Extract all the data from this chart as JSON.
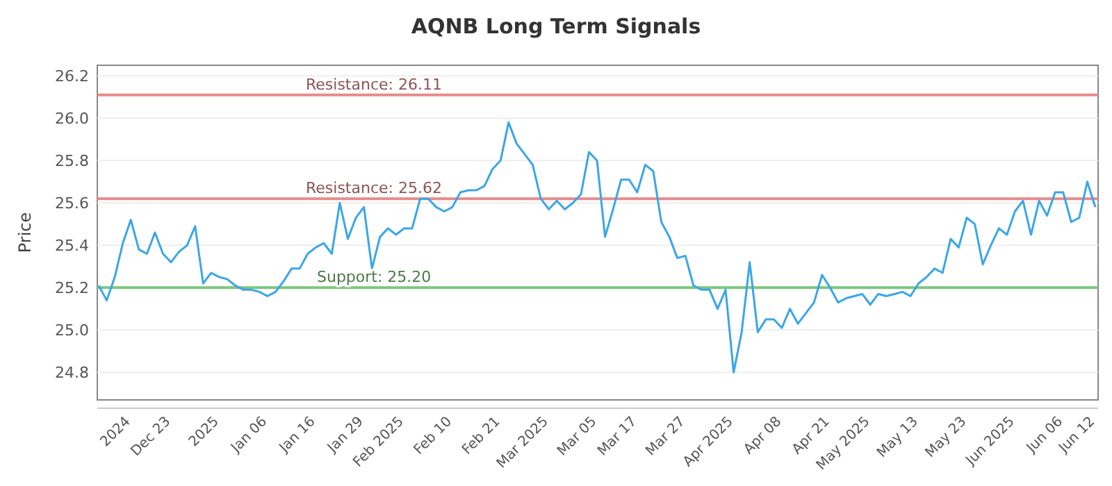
{
  "chart_data": {
    "type": "line",
    "title": "AQNB Long Term Signals",
    "ylabel": "Price",
    "categories": [
      null,
      null,
      null,
      null,
      "2024",
      null,
      null,
      null,
      null,
      "Dec 23",
      null,
      null,
      null,
      null,
      null,
      "2025",
      null,
      null,
      null,
      null,
      null,
      "Jan 06",
      null,
      null,
      null,
      null,
      null,
      "Jan 16",
      null,
      null,
      null,
      null,
      null,
      "Jan 29",
      null,
      null,
      null,
      null,
      "Feb 2025",
      null,
      null,
      null,
      null,
      null,
      "Feb 10",
      null,
      null,
      null,
      null,
      null,
      "Feb 21",
      null,
      null,
      null,
      null,
      null,
      "Mar 2025",
      null,
      null,
      null,
      null,
      null,
      "Mar 05",
      null,
      null,
      null,
      null,
      "Mar 17",
      null,
      null,
      null,
      null,
      null,
      "Mar 27",
      null,
      null,
      null,
      null,
      null,
      "Apr 2025",
      null,
      null,
      null,
      null,
      null,
      "Apr 08",
      null,
      null,
      null,
      null,
      null,
      "Apr 21",
      null,
      null,
      null,
      null,
      "May 2025",
      null,
      null,
      null,
      null,
      null,
      "May 13",
      null,
      null,
      null,
      null,
      null,
      "May 23",
      null,
      null,
      null,
      null,
      null,
      "Jun 2025",
      null,
      null,
      null,
      null,
      null,
      "Jun 06",
      null,
      null,
      null,
      "Jun 12"
    ],
    "series": [
      {
        "color": "#3aa6e8",
        "values": [
          25.21,
          25.14,
          25.25,
          25.41,
          25.52,
          25.38,
          25.36,
          25.46,
          25.36,
          25.32,
          25.37,
          25.4,
          25.49,
          25.22,
          25.27,
          25.25,
          25.24,
          25.21,
          25.19,
          25.19,
          25.18,
          25.16,
          25.18,
          25.23,
          25.29,
          25.29,
          25.36,
          25.39,
          25.41,
          25.36,
          25.6,
          25.43,
          25.53,
          25.58,
          25.29,
          25.44,
          25.48,
          25.45,
          25.48,
          25.48,
          25.62,
          25.62,
          25.58,
          25.56,
          25.58,
          25.65,
          25.66,
          25.66,
          25.68,
          25.76,
          25.8,
          25.98,
          25.88,
          25.83,
          25.78,
          25.62,
          25.57,
          25.61,
          25.57,
          25.6,
          25.64,
          25.84,
          25.8,
          25.44,
          25.57,
          25.71,
          25.71,
          25.65,
          25.78,
          25.75,
          25.51,
          25.44,
          25.34,
          25.35,
          25.21,
          25.19,
          25.19,
          25.1,
          25.19,
          24.8,
          24.99,
          25.32,
          24.99,
          25.05,
          25.05,
          25.01,
          25.1,
          25.03,
          25.08,
          25.13,
          25.26,
          25.2,
          25.13,
          25.15,
          25.16,
          25.17,
          25.12,
          25.17,
          25.16,
          25.17,
          25.18,
          25.16,
          25.22,
          25.25,
          25.29,
          25.27,
          25.43,
          25.39,
          25.53,
          25.5,
          25.31,
          25.4,
          25.48,
          25.45,
          25.56,
          25.61,
          25.45,
          25.61,
          25.54,
          25.65,
          25.65,
          25.51,
          25.53,
          25.7,
          25.58
        ]
      }
    ],
    "ylim": [
      24.67,
      26.25
    ],
    "yticks": [
      {
        "value": 24.8,
        "label": "24.8"
      },
      {
        "value": 25,
        "label": "25.0"
      },
      {
        "value": 25.2,
        "label": "25.2"
      },
      {
        "value": 25.4,
        "label": "25.4"
      },
      {
        "value": 25.6,
        "label": "25.6"
      },
      {
        "value": 25.8,
        "label": "25.8"
      },
      {
        "value": 26,
        "label": "26.0"
      },
      {
        "value": 26.2,
        "label": "26.2"
      }
    ],
    "grid": "y",
    "ref_lines": [
      {
        "axis": "y",
        "value": 26.11,
        "label": "Resistance: 26.11",
        "color": "#e88a8a"
      },
      {
        "axis": "y",
        "value": 25.62,
        "label": "Resistance: 25.62",
        "color": "#e88a8a"
      },
      {
        "axis": "y",
        "value": 25.2,
        "label": "Support: 25.20",
        "color": "#7cc77c"
      }
    ]
  }
}
